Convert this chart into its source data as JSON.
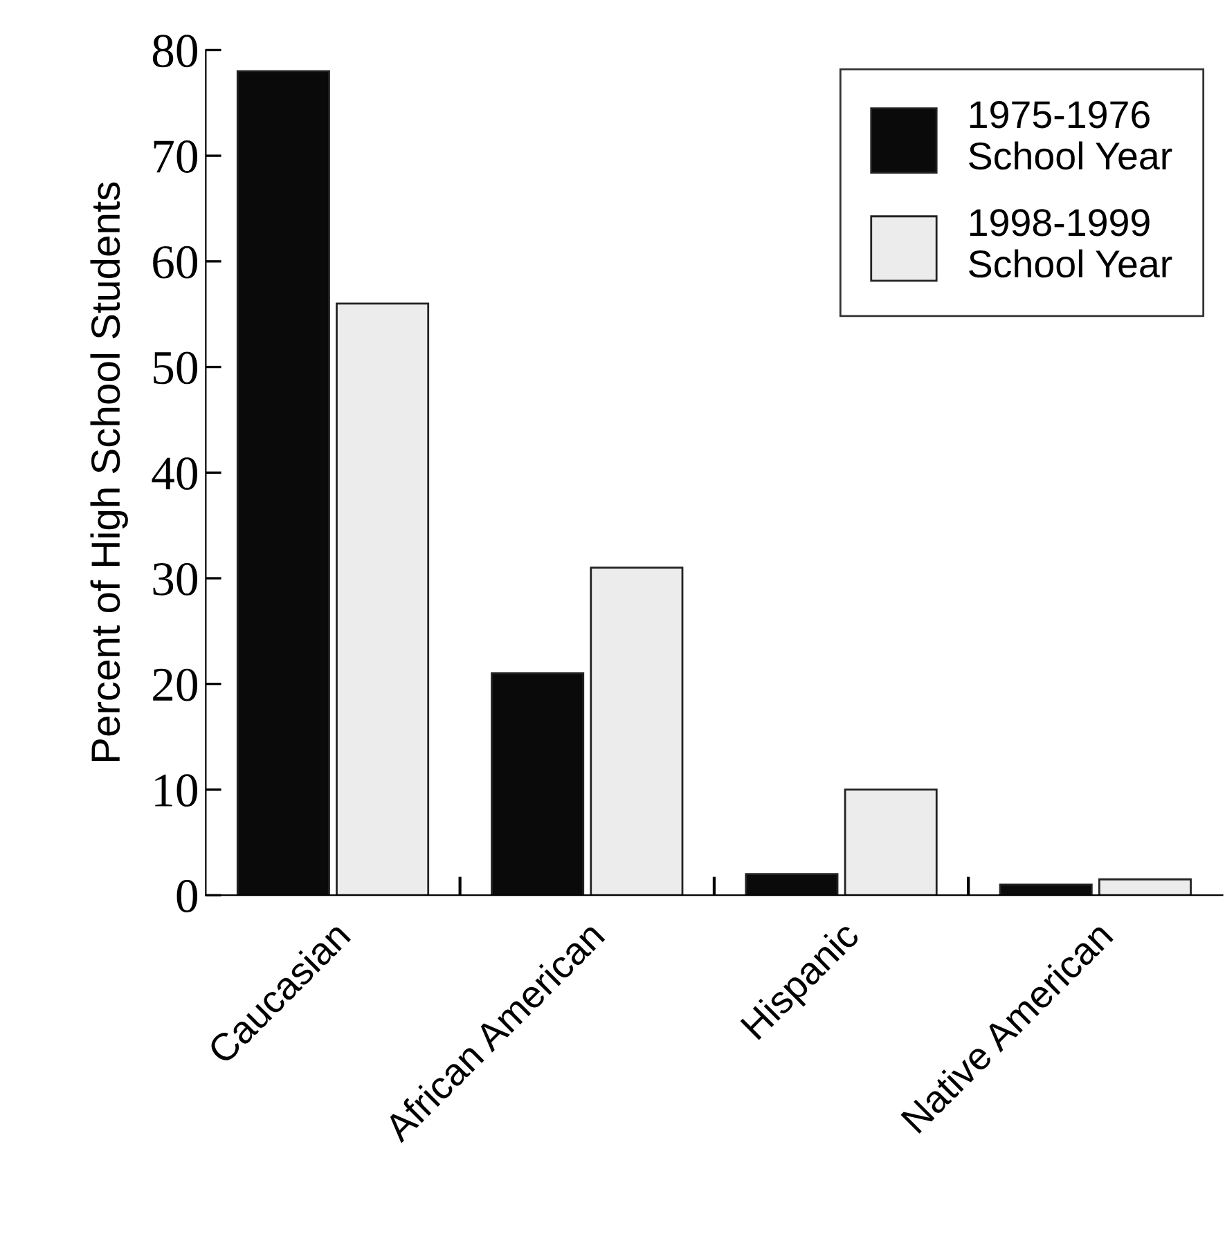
{
  "chart_data": {
    "type": "bar",
    "ylabel": "Percent of High School Students",
    "categories": [
      "Caucasian",
      "African American",
      "Hispanic",
      "Native American"
    ],
    "series": [
      {
        "name": "1975-1976\nSchool Year",
        "color": "#0a0a0a",
        "values": [
          78,
          21,
          2,
          1
        ]
      },
      {
        "name": "1998-1999\nSchool Year",
        "color": "#ececec",
        "values": [
          56,
          31,
          10,
          1.5
        ]
      }
    ],
    "ylim": [
      0,
      80
    ],
    "yticks": [
      0,
      10,
      20,
      30,
      40,
      50,
      60,
      70,
      80
    ],
    "grid": false,
    "legend": "top right"
  }
}
